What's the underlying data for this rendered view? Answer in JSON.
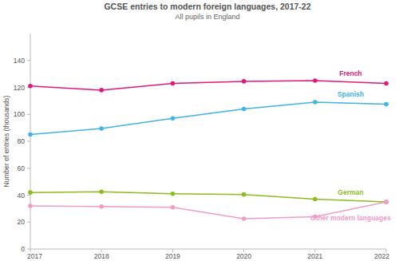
{
  "chart_data": {
    "type": "line",
    "title": "GCSE entries to modern foreign languages, 2017-22",
    "subtitle": "All pupils in England",
    "y_label": "Number of entries (thousands)",
    "x": [
      2017,
      2018,
      2019,
      2020,
      2021,
      2022
    ],
    "xlim": [
      2017,
      2022
    ],
    "xticks": [
      2017,
      2018,
      2019,
      2020,
      2021,
      2022
    ],
    "ylim": [
      0,
      160
    ],
    "yticks": [
      0,
      20,
      40,
      60,
      80,
      100,
      120,
      140
    ],
    "grid": false,
    "series": [
      {
        "name": "French",
        "color": "#e0197b",
        "marker": "circle",
        "values": [
          121,
          118,
          123,
          124.5,
          125,
          123
        ]
      },
      {
        "name": "Spanish",
        "color": "#3fb4e5",
        "marker": "circle",
        "values": [
          85,
          89.5,
          97,
          104,
          109,
          107.5
        ]
      },
      {
        "name": "German",
        "color": "#8cbd1e",
        "marker": "circle",
        "values": [
          42,
          42.5,
          41,
          40.5,
          37,
          35
        ]
      },
      {
        "name": "Other modern languages",
        "color": "#f29bc8",
        "marker": "circle",
        "values": [
          32,
          31.5,
          31,
          22.5,
          24,
          35
        ]
      }
    ]
  }
}
